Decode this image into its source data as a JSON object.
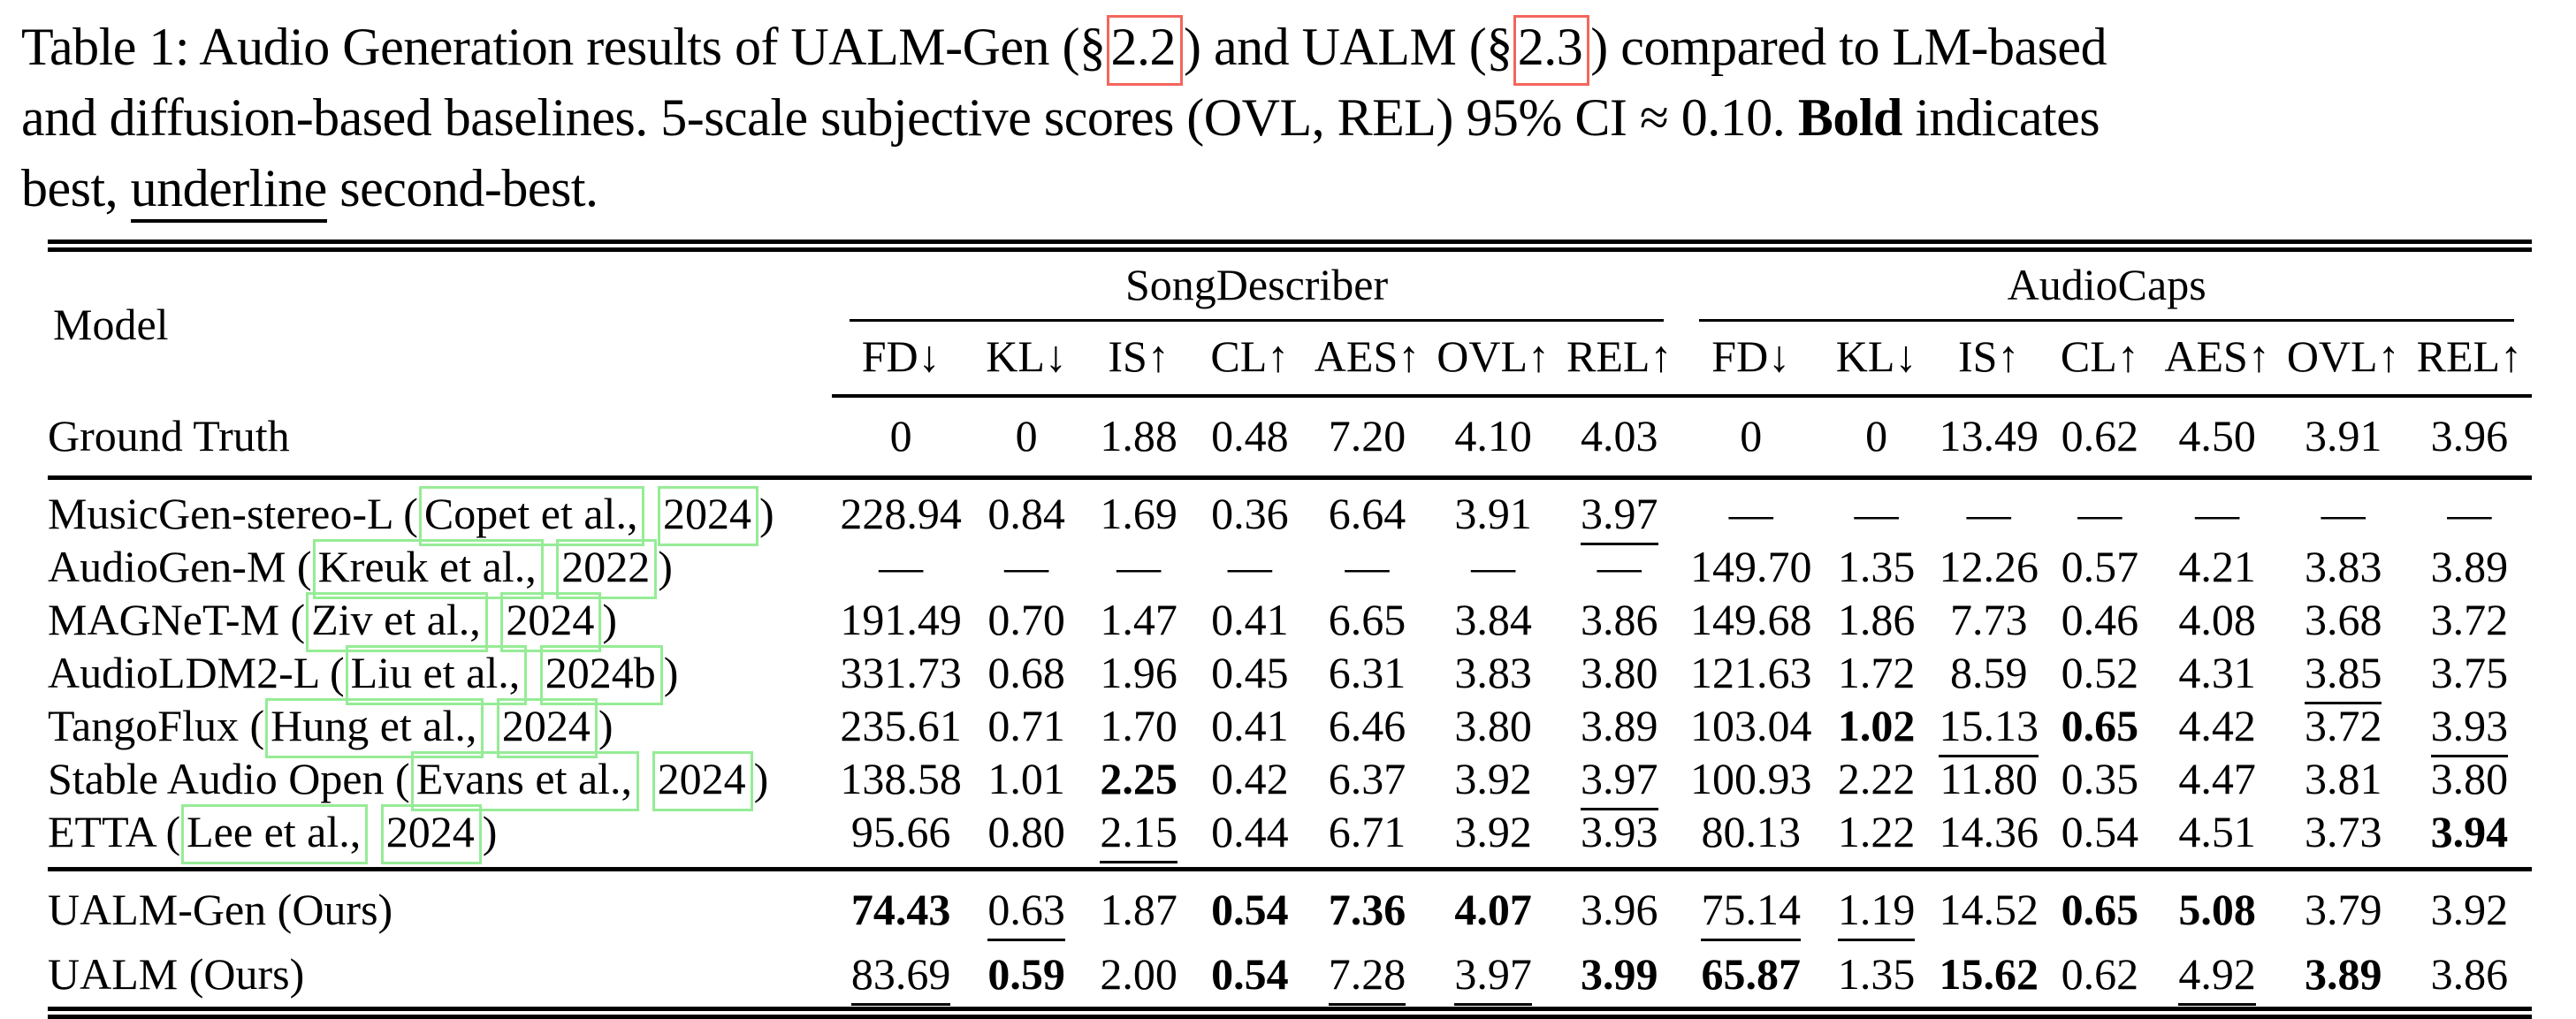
{
  "caption": {
    "segments": [
      {
        "t": "Table 1: Audio Generation results of UALM-Gen (§",
        "s": "plain"
      },
      {
        "t": "2.2",
        "s": "refbox"
      },
      {
        "t": ") and UALM (§",
        "s": "plain"
      },
      {
        "t": "2.3",
        "s": "refbox"
      },
      {
        "t": ") compared to LM-based",
        "s": "plain"
      },
      {
        "s": "br"
      },
      {
        "t": "and diffusion-based baselines. 5-scale subjective scores (OVL, REL) 95% CI ≈ 0.10. ",
        "s": "plain"
      },
      {
        "t": "Bold",
        "s": "bold"
      },
      {
        "t": " indicates",
        "s": "plain"
      },
      {
        "s": "br"
      },
      {
        "t": "best, ",
        "s": "plain"
      },
      {
        "t": "underline",
        "s": "underline"
      },
      {
        "t": " second-best.",
        "s": "plain"
      }
    ]
  },
  "colors": {
    "citation_box": "#96ec96",
    "section_ref_box": "#f4665c",
    "rule": "#000000"
  },
  "table": {
    "model_header": "Model",
    "citation_format": {
      "open": " (",
      "sep": " ",
      "close": ")"
    },
    "groups": [
      {
        "label": "SongDescriber",
        "metrics": [
          "FD↓",
          "KL↓",
          "IS↑",
          "CL↑",
          "AES↑",
          "OVL↑",
          "REL↑"
        ]
      },
      {
        "label": "AudioCaps",
        "metrics": [
          "FD↓",
          "KL↓",
          "IS↑",
          "CL↑",
          "AES↑",
          "OVL↑",
          "REL↑"
        ]
      }
    ],
    "sections": [
      {
        "name": "gt",
        "rows": [
          {
            "model": {
              "name": "Ground Truth"
            },
            "cells": [
              {
                "v": "0",
                "s": "p"
              },
              {
                "v": "0",
                "s": "p"
              },
              {
                "v": "1.88",
                "s": "p"
              },
              {
                "v": "0.48",
                "s": "p"
              },
              {
                "v": "7.20",
                "s": "p"
              },
              {
                "v": "4.10",
                "s": "p"
              },
              {
                "v": "4.03",
                "s": "p"
              },
              {
                "v": "0",
                "s": "p"
              },
              {
                "v": "0",
                "s": "p"
              },
              {
                "v": "13.49",
                "s": "p"
              },
              {
                "v": "0.62",
                "s": "p"
              },
              {
                "v": "4.50",
                "s": "p"
              },
              {
                "v": "3.91",
                "s": "p"
              },
              {
                "v": "3.96",
                "s": "p"
              }
            ]
          }
        ]
      },
      {
        "name": "base",
        "rows": [
          {
            "model": {
              "name": "MusicGen-stereo-L",
              "cite": {
                "author": "Copet et al.,",
                "year": "2024"
              }
            },
            "cells": [
              {
                "v": "228.94",
                "s": "p"
              },
              {
                "v": "0.84",
                "s": "p"
              },
              {
                "v": "1.69",
                "s": "p"
              },
              {
                "v": "0.36",
                "s": "p"
              },
              {
                "v": "6.64",
                "s": "p"
              },
              {
                "v": "3.91",
                "s": "p"
              },
              {
                "v": "3.97",
                "s": "u"
              },
              {
                "v": "—",
                "s": "p"
              },
              {
                "v": "—",
                "s": "p"
              },
              {
                "v": "—",
                "s": "p"
              },
              {
                "v": "—",
                "s": "p"
              },
              {
                "v": "—",
                "s": "p"
              },
              {
                "v": "—",
                "s": "p"
              },
              {
                "v": "—",
                "s": "p"
              }
            ]
          },
          {
            "model": {
              "name": "AudioGen-M",
              "cite": {
                "author": "Kreuk et al.,",
                "year": "2022"
              }
            },
            "cells": [
              {
                "v": "—",
                "s": "p"
              },
              {
                "v": "—",
                "s": "p"
              },
              {
                "v": "—",
                "s": "p"
              },
              {
                "v": "—",
                "s": "p"
              },
              {
                "v": "—",
                "s": "p"
              },
              {
                "v": "—",
                "s": "p"
              },
              {
                "v": "—",
                "s": "p"
              },
              {
                "v": "149.70",
                "s": "p"
              },
              {
                "v": "1.35",
                "s": "p"
              },
              {
                "v": "12.26",
                "s": "p"
              },
              {
                "v": "0.57",
                "s": "p"
              },
              {
                "v": "4.21",
                "s": "p"
              },
              {
                "v": "3.83",
                "s": "p"
              },
              {
                "v": "3.89",
                "s": "p"
              }
            ]
          },
          {
            "model": {
              "name": "MAGNeT-M",
              "cite": {
                "author": "Ziv et al.,",
                "year": "2024"
              }
            },
            "cells": [
              {
                "v": "191.49",
                "s": "p"
              },
              {
                "v": "0.70",
                "s": "p"
              },
              {
                "v": "1.47",
                "s": "p"
              },
              {
                "v": "0.41",
                "s": "p"
              },
              {
                "v": "6.65",
                "s": "p"
              },
              {
                "v": "3.84",
                "s": "p"
              },
              {
                "v": "3.86",
                "s": "p"
              },
              {
                "v": "149.68",
                "s": "p"
              },
              {
                "v": "1.86",
                "s": "p"
              },
              {
                "v": "7.73",
                "s": "p"
              },
              {
                "v": "0.46",
                "s": "p"
              },
              {
                "v": "4.08",
                "s": "p"
              },
              {
                "v": "3.68",
                "s": "p"
              },
              {
                "v": "3.72",
                "s": "p"
              }
            ]
          },
          {
            "model": {
              "name": "AudioLDM2-L",
              "cite": {
                "author": "Liu et al.,",
                "year": "2024b"
              }
            },
            "cells": [
              {
                "v": "331.73",
                "s": "p"
              },
              {
                "v": "0.68",
                "s": "p"
              },
              {
                "v": "1.96",
                "s": "p"
              },
              {
                "v": "0.45",
                "s": "p"
              },
              {
                "v": "6.31",
                "s": "p"
              },
              {
                "v": "3.83",
                "s": "p"
              },
              {
                "v": "3.80",
                "s": "p"
              },
              {
                "v": "121.63",
                "s": "p"
              },
              {
                "v": "1.72",
                "s": "p"
              },
              {
                "v": "8.59",
                "s": "p"
              },
              {
                "v": "0.52",
                "s": "p"
              },
              {
                "v": "4.31",
                "s": "p"
              },
              {
                "v": "3.85",
                "s": "u"
              },
              {
                "v": "3.75",
                "s": "p"
              }
            ]
          },
          {
            "model": {
              "name": "TangoFlux",
              "cite": {
                "author": "Hung et al.,",
                "year": "2024"
              }
            },
            "cells": [
              {
                "v": "235.61",
                "s": "p"
              },
              {
                "v": "0.71",
                "s": "p"
              },
              {
                "v": "1.70",
                "s": "p"
              },
              {
                "v": "0.41",
                "s": "p"
              },
              {
                "v": "6.46",
                "s": "p"
              },
              {
                "v": "3.80",
                "s": "p"
              },
              {
                "v": "3.89",
                "s": "p"
              },
              {
                "v": "103.04",
                "s": "p"
              },
              {
                "v": "1.02",
                "s": "b"
              },
              {
                "v": "15.13",
                "s": "u"
              },
              {
                "v": "0.65",
                "s": "b"
              },
              {
                "v": "4.42",
                "s": "p"
              },
              {
                "v": "3.72",
                "s": "p"
              },
              {
                "v": "3.93",
                "s": "u"
              }
            ]
          },
          {
            "model": {
              "name": "Stable Audio Open",
              "cite": {
                "author": "Evans et al.,",
                "year": "2024"
              }
            },
            "cells": [
              {
                "v": "138.58",
                "s": "p"
              },
              {
                "v": "1.01",
                "s": "p"
              },
              {
                "v": "2.25",
                "s": "b"
              },
              {
                "v": "0.42",
                "s": "p"
              },
              {
                "v": "6.37",
                "s": "p"
              },
              {
                "v": "3.92",
                "s": "p"
              },
              {
                "v": "3.97",
                "s": "u"
              },
              {
                "v": "100.93",
                "s": "p"
              },
              {
                "v": "2.22",
                "s": "p"
              },
              {
                "v": "11.80",
                "s": "p"
              },
              {
                "v": "0.35",
                "s": "p"
              },
              {
                "v": "4.47",
                "s": "p"
              },
              {
                "v": "3.81",
                "s": "p"
              },
              {
                "v": "3.80",
                "s": "p"
              }
            ]
          },
          {
            "model": {
              "name": "ETTA",
              "cite": {
                "author": "Lee et al.,",
                "year": "2024"
              }
            },
            "cells": [
              {
                "v": "95.66",
                "s": "p"
              },
              {
                "v": "0.80",
                "s": "p"
              },
              {
                "v": "2.15",
                "s": "u"
              },
              {
                "v": "0.44",
                "s": "p"
              },
              {
                "v": "6.71",
                "s": "p"
              },
              {
                "v": "3.92",
                "s": "p"
              },
              {
                "v": "3.93",
                "s": "p"
              },
              {
                "v": "80.13",
                "s": "p"
              },
              {
                "v": "1.22",
                "s": "p"
              },
              {
                "v": "14.36",
                "s": "p"
              },
              {
                "v": "0.54",
                "s": "p"
              },
              {
                "v": "4.51",
                "s": "p"
              },
              {
                "v": "3.73",
                "s": "p"
              },
              {
                "v": "3.94",
                "s": "b"
              }
            ]
          }
        ]
      },
      {
        "name": "ours",
        "rows": [
          {
            "model": {
              "name": "UALM-Gen",
              "suffix": " (Ours)"
            },
            "cells": [
              {
                "v": "74.43",
                "s": "b"
              },
              {
                "v": "0.63",
                "s": "u"
              },
              {
                "v": "1.87",
                "s": "p"
              },
              {
                "v": "0.54",
                "s": "b"
              },
              {
                "v": "7.36",
                "s": "b"
              },
              {
                "v": "4.07",
                "s": "b"
              },
              {
                "v": "3.96",
                "s": "p"
              },
              {
                "v": "75.14",
                "s": "u"
              },
              {
                "v": "1.19",
                "s": "u"
              },
              {
                "v": "14.52",
                "s": "p"
              },
              {
                "v": "0.65",
                "s": "b"
              },
              {
                "v": "5.08",
                "s": "b"
              },
              {
                "v": "3.79",
                "s": "p"
              },
              {
                "v": "3.92",
                "s": "p"
              }
            ]
          },
          {
            "model": {
              "name": "UALM",
              "suffix": " (Ours)"
            },
            "cells": [
              {
                "v": "83.69",
                "s": "u"
              },
              {
                "v": "0.59",
                "s": "b"
              },
              {
                "v": "2.00",
                "s": "p"
              },
              {
                "v": "0.54",
                "s": "b"
              },
              {
                "v": "7.28",
                "s": "u"
              },
              {
                "v": "3.97",
                "s": "u"
              },
              {
                "v": "3.99",
                "s": "b"
              },
              {
                "v": "65.87",
                "s": "b"
              },
              {
                "v": "1.35",
                "s": "p"
              },
              {
                "v": "15.62",
                "s": "b"
              },
              {
                "v": "0.62",
                "s": "p"
              },
              {
                "v": "4.92",
                "s": "u"
              },
              {
                "v": "3.89",
                "s": "b"
              },
              {
                "v": "3.86",
                "s": "p"
              }
            ]
          }
        ]
      }
    ]
  }
}
